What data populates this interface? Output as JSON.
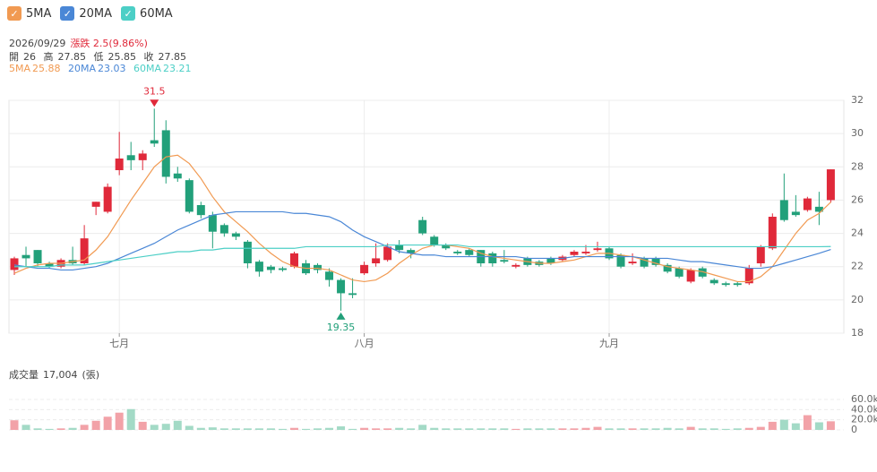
{
  "header": {
    "date": "2026/09/29",
    "change": "漲跌 2.5(9.86%)",
    "ohlc_labels": [
      "開",
      "高",
      "低",
      "收"
    ]
  },
  "chart_data": [
    {
      "type": "candlestick",
      "categories": [
        null,
        null,
        null,
        null,
        null,
        null,
        null,
        null,
        null,
        "七月",
        null,
        null,
        null,
        null,
        null,
        null,
        null,
        null,
        null,
        null,
        null,
        null,
        null,
        null,
        null,
        null,
        null,
        null,
        null,
        null,
        "八月",
        null,
        null,
        null,
        null,
        null,
        null,
        null,
        null,
        null,
        null,
        null,
        null,
        null,
        null,
        null,
        null,
        null,
        null,
        null,
        null,
        "九月",
        null,
        null,
        null,
        null,
        null,
        null,
        null,
        null,
        null,
        null,
        null,
        null,
        null,
        null,
        null,
        null,
        null,
        null,
        null
      ],
      "open": [
        21.8,
        22.7,
        23.0,
        22.2,
        22.0,
        22.4,
        22.2,
        25.6,
        25.3,
        27.8,
        28.7,
        28.4,
        29.6,
        30.2,
        27.6,
        27.2,
        25.7,
        25.1,
        24.5,
        24.0,
        23.5,
        22.3,
        22.0,
        21.9,
        22.0,
        22.2,
        22.1,
        21.7,
        21.2,
        20.4,
        21.6,
        22.2,
        22.4,
        23.3,
        23.0,
        24.8,
        23.8,
        23.3,
        22.9,
        23.0,
        23.0,
        22.8,
        22.4,
        22.0,
        22.5,
        22.3,
        22.5,
        22.4,
        22.7,
        22.8,
        23.0,
        23.1,
        22.7,
        22.2,
        22.5,
        22.5,
        22.1,
        21.9,
        21.1,
        21.9,
        21.2,
        21.0,
        21.0,
        21.0,
        22.2,
        23.1,
        26.0,
        25.3,
        25.4,
        25.6,
        26
      ],
      "high": [
        22.6,
        23.2,
        23.0,
        22.3,
        22.5,
        23.2,
        24.5,
        25.9,
        27.0,
        30.1,
        29.5,
        29.0,
        31.5,
        30.8,
        28.0,
        27.3,
        25.9,
        25.3,
        24.6,
        24.1,
        23.6,
        22.4,
        22.1,
        22.0,
        22.9,
        22.4,
        22.2,
        21.9,
        21.3,
        21.3,
        22.3,
        23.4,
        23.4,
        23.6,
        23.1,
        25.0,
        23.9,
        23.4,
        23.0,
        23.1,
        23.0,
        22.9,
        23.0,
        22.2,
        22.6,
        22.4,
        22.6,
        22.7,
        23.0,
        23.3,
        23.5,
        23.2,
        22.8,
        22.8,
        22.6,
        22.6,
        22.2,
        22.0,
        21.9,
        22.0,
        21.3,
        21.1,
        21.1,
        22.1,
        23.3,
        25.2,
        27.6,
        26.3,
        26.2,
        26.5,
        27.85
      ],
      "low": [
        21.5,
        22.0,
        22.0,
        21.9,
        21.9,
        22.1,
        22.1,
        25.1,
        25.2,
        27.5,
        27.8,
        27.8,
        29.2,
        27.0,
        27.1,
        25.2,
        24.9,
        23.1,
        23.8,
        23.6,
        21.9,
        21.4,
        21.6,
        21.7,
        21.9,
        21.5,
        21.6,
        20.8,
        19.35,
        20.1,
        21.5,
        22.0,
        22.3,
        22.8,
        22.5,
        23.9,
        23.2,
        23.0,
        22.7,
        22.6,
        22.0,
        22.0,
        22.2,
        21.9,
        22.0,
        22.0,
        22.1,
        22.3,
        22.6,
        22.7,
        22.9,
        22.4,
        21.9,
        22.1,
        21.9,
        22.0,
        21.6,
        21.3,
        21.0,
        21.3,
        20.9,
        20.8,
        20.8,
        20.9,
        22.0,
        23.0,
        24.7,
        25.0,
        25.3,
        24.5,
        25.85
      ],
      "close": [
        22.5,
        22.5,
        22.2,
        22.0,
        22.4,
        22.2,
        23.7,
        25.9,
        26.8,
        28.5,
        28.4,
        28.8,
        29.4,
        27.4,
        27.3,
        25.3,
        25.1,
        24.1,
        24.0,
        23.8,
        22.2,
        21.7,
        21.8,
        21.8,
        22.8,
        21.6,
        21.8,
        21.2,
        20.4,
        20.3,
        22.1,
        22.5,
        23.2,
        23.0,
        22.8,
        24.0,
        23.3,
        23.1,
        22.8,
        22.7,
        22.2,
        22.2,
        22.3,
        22.1,
        22.1,
        22.1,
        22.2,
        22.6,
        22.9,
        22.9,
        23.1,
        22.5,
        22.0,
        22.3,
        22.0,
        22.1,
        21.7,
        21.4,
        21.8,
        21.4,
        21.0,
        20.9,
        20.9,
        21.9,
        23.2,
        25.0,
        24.8,
        25.1,
        26.1,
        25.3,
        27.85
      ],
      "up_color": "#e0293a",
      "down_color": "#22a07a",
      "series": [
        {
          "name": "5MA",
          "color": "#f19a52",
          "values": [
            21.6,
            21.9,
            22.1,
            22.2,
            22.2,
            22.3,
            22.4,
            23.0,
            23.8,
            24.9,
            26.0,
            27.0,
            28.0,
            28.6,
            28.7,
            28.2,
            27.3,
            26.2,
            25.3,
            24.7,
            24.1,
            23.4,
            22.8,
            22.3,
            22.0,
            21.9,
            21.9,
            21.8,
            21.5,
            21.2,
            21.1,
            21.2,
            21.6,
            22.2,
            22.7,
            23.1,
            23.3,
            23.3,
            23.2,
            23.1,
            22.8,
            22.6,
            22.5,
            22.4,
            22.3,
            22.2,
            22.2,
            22.3,
            22.4,
            22.6,
            22.8,
            22.8,
            22.7,
            22.6,
            22.4,
            22.2,
            22.0,
            21.9,
            21.8,
            21.7,
            21.5,
            21.3,
            21.1,
            21.1,
            21.4,
            22.0,
            23.0,
            24.0,
            24.8,
            25.2,
            25.88
          ]
        },
        {
          "name": "20MA",
          "color": "#4a87d6",
          "values": [
            22.1,
            22.0,
            21.9,
            21.9,
            21.8,
            21.8,
            21.9,
            22.0,
            22.2,
            22.5,
            22.8,
            23.1,
            23.4,
            23.8,
            24.2,
            24.5,
            24.8,
            25.1,
            25.2,
            25.3,
            25.3,
            25.3,
            25.3,
            25.3,
            25.2,
            25.2,
            25.1,
            25.0,
            24.7,
            24.2,
            23.8,
            23.5,
            23.2,
            22.9,
            22.8,
            22.7,
            22.7,
            22.6,
            22.6,
            22.6,
            22.6,
            22.6,
            22.6,
            22.6,
            22.5,
            22.5,
            22.5,
            22.5,
            22.6,
            22.6,
            22.6,
            22.6,
            22.6,
            22.6,
            22.5,
            22.5,
            22.5,
            22.4,
            22.3,
            22.3,
            22.2,
            22.1,
            22.0,
            21.9,
            21.9,
            22.0,
            22.2,
            22.4,
            22.6,
            22.8,
            23.03
          ]
        },
        {
          "name": "60MA",
          "color": "#4ccfc6",
          "values": [
            22.0,
            22.0,
            22.0,
            22.0,
            22.1,
            22.1,
            22.1,
            22.2,
            22.3,
            22.4,
            22.5,
            22.6,
            22.7,
            22.8,
            22.9,
            22.9,
            23.0,
            23.0,
            23.1,
            23.1,
            23.1,
            23.1,
            23.1,
            23.1,
            23.1,
            23.2,
            23.2,
            23.2,
            23.2,
            23.2,
            23.2,
            23.2,
            23.3,
            23.3,
            23.3,
            23.3,
            23.3,
            23.3,
            23.3,
            23.2,
            23.2,
            23.2,
            23.2,
            23.2,
            23.2,
            23.2,
            23.2,
            23.2,
            23.2,
            23.2,
            23.2,
            23.2,
            23.2,
            23.2,
            23.2,
            23.2,
            23.2,
            23.2,
            23.2,
            23.2,
            23.2,
            23.2,
            23.2,
            23.2,
            23.2,
            23.2,
            23.2,
            23.2,
            23.2,
            23.2,
            23.21
          ]
        }
      ],
      "ylim": [
        18,
        32
      ],
      "yticks": [
        18,
        20,
        22,
        24,
        26,
        28,
        30,
        32
      ],
      "grid": true
    },
    {
      "type": "bar",
      "title": "成交量",
      "latest": "17,004",
      "unit": "(張)",
      "values": [
        19000,
        10000,
        3000,
        2000,
        3000,
        4000,
        10000,
        18000,
        26000,
        34000,
        41000,
        16000,
        10000,
        12000,
        18000,
        8000,
        4000,
        5000,
        3000,
        3000,
        3000,
        3000,
        3000,
        2000,
        4000,
        2000,
        3000,
        4000,
        7000,
        2000,
        4000,
        3000,
        3000,
        4000,
        3000,
        10000,
        4000,
        3000,
        3000,
        3000,
        3000,
        3000,
        3000,
        2000,
        3000,
        3000,
        3000,
        3000,
        3000,
        4000,
        6000,
        3000,
        3000,
        3000,
        3000,
        3000,
        4000,
        3000,
        6000,
        3000,
        3000,
        2000,
        3000,
        4000,
        6000,
        16000,
        20000,
        13000,
        29000,
        15000,
        17004
      ],
      "up_color": "#f2a2a8",
      "down_color": "#a3dac6",
      "ylim": [
        0,
        60000
      ],
      "yticks": [
        0,
        {
          "value": 20000,
          "label": "20.0k"
        },
        {
          "value": 40000,
          "label": "40.0k"
        },
        {
          "value": 60000,
          "label": "60.0k"
        }
      ],
      "grid": true
    }
  ]
}
